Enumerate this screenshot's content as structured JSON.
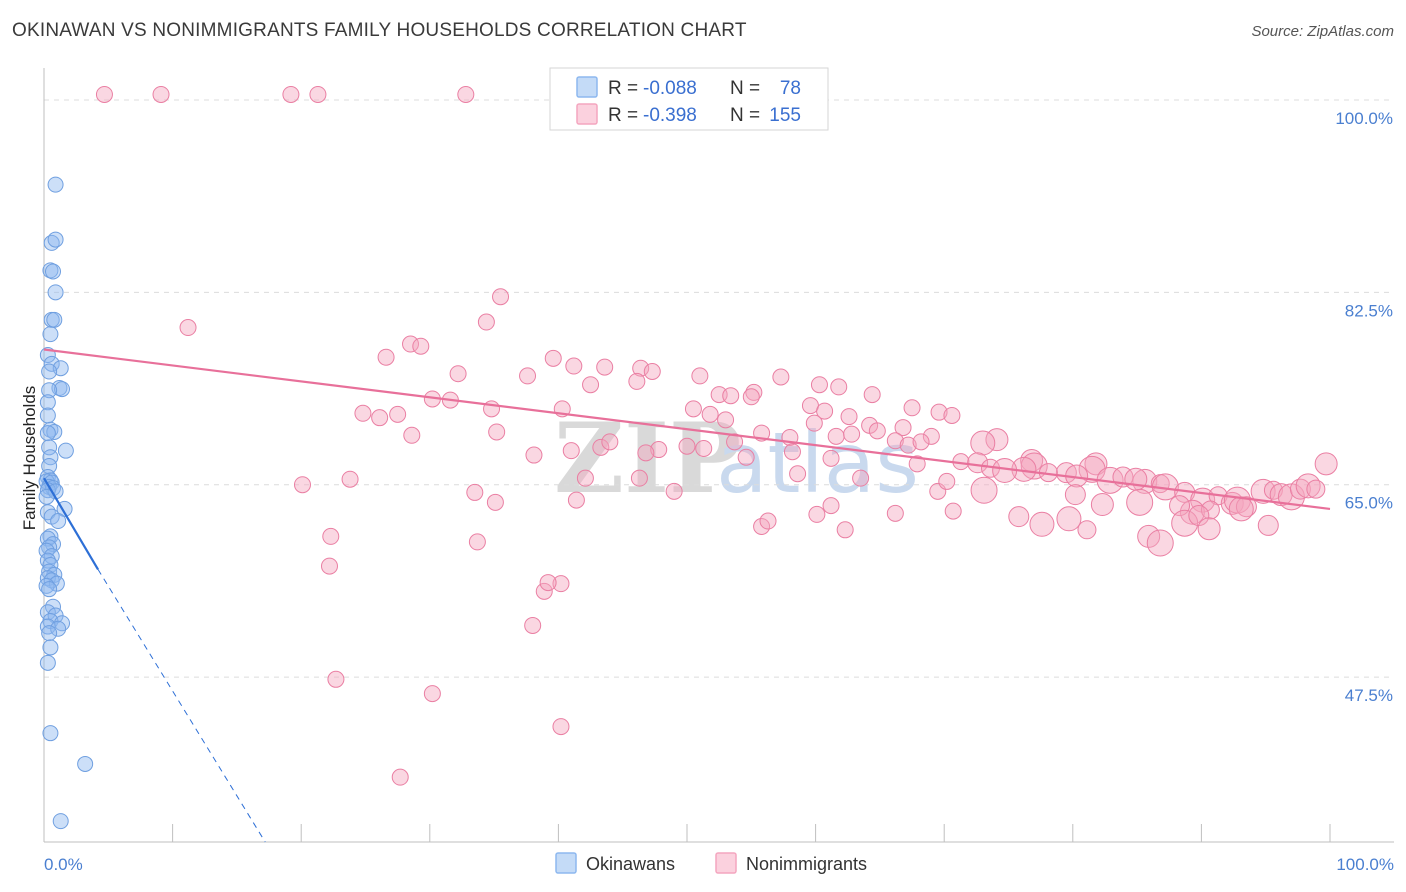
{
  "title": "OKINAWAN VS NONIMMIGRANTS FAMILY HOUSEHOLDS CORRELATION CHART",
  "source": "Source: ZipAtlas.com",
  "watermark": {
    "zip": "ZIP",
    "atlas": "atlas"
  },
  "legend": {
    "r_label": "R =",
    "n_label": "N =",
    "rows": [
      {
        "r": "-0.088",
        "n": "78",
        "color": "#8db8ef"
      },
      {
        "r": "-0.398",
        "n": "155",
        "color": "#f4a6bf"
      }
    ]
  },
  "bottom_legend": [
    {
      "label": "Okinawans",
      "color": "#8db8ef"
    },
    {
      "label": "Nonimmigrants",
      "color": "#f4a6bf"
    }
  ],
  "chart_data": {
    "type": "scatter",
    "title": "OKINAWAN VS NONIMMIGRANTS FAMILY HOUSEHOLDS CORRELATION CHART",
    "xlabel": "",
    "ylabel": "Family Households",
    "xlim": [
      0,
      100
    ],
    "ylim": [
      32.5,
      102
    ],
    "x_tick_labels": [
      "0.0%",
      "100.0%"
    ],
    "y_ticks": [
      {
        "value": 100.0,
        "label": "100.0%"
      },
      {
        "value": 82.5,
        "label": "82.5%"
      },
      {
        "value": 65.0,
        "label": "65.0%"
      },
      {
        "value": 47.5,
        "label": "47.5%"
      }
    ],
    "series": [
      {
        "name": "Okinawans",
        "color": "#8db8ef",
        "stroke": "#6f9fe0",
        "trend": {
          "x0": 0,
          "y0": 65.6,
          "x1": 4.2,
          "y1": 57.3,
          "dash_to_x": 17.2,
          "dash_to_y": 32.5,
          "color": "#2d6fd6"
        },
        "points": [
          [
            0.9,
            92.3
          ],
          [
            0.6,
            87.0
          ],
          [
            0.9,
            87.3
          ],
          [
            0.5,
            84.5
          ],
          [
            0.7,
            84.4
          ],
          [
            0.9,
            82.5
          ],
          [
            0.6,
            80.0
          ],
          [
            0.8,
            80.0
          ],
          [
            0.5,
            78.7
          ],
          [
            0.3,
            76.8
          ],
          [
            0.6,
            76.0
          ],
          [
            1.3,
            75.6
          ],
          [
            0.4,
            75.3
          ],
          [
            1.2,
            73.8
          ],
          [
            1.4,
            73.7
          ],
          [
            0.4,
            73.6
          ],
          [
            0.3,
            72.5
          ],
          [
            0.3,
            71.3
          ],
          [
            0.5,
            70.0
          ],
          [
            0.8,
            69.8
          ],
          [
            0.3,
            69.7
          ],
          [
            0.4,
            68.4
          ],
          [
            1.7,
            68.1
          ],
          [
            0.5,
            67.5
          ],
          [
            0.4,
            66.7
          ],
          [
            0.3,
            65.7
          ],
          [
            0.5,
            65.4
          ],
          [
            0.2,
            65.3
          ],
          [
            0.6,
            65.2
          ],
          [
            0.4,
            64.8
          ],
          [
            0.7,
            64.7
          ],
          [
            0.3,
            64.5
          ],
          [
            0.9,
            64.4
          ],
          [
            0.2,
            63.9
          ],
          [
            1.6,
            62.8
          ],
          [
            0.3,
            62.5
          ],
          [
            0.6,
            62.1
          ],
          [
            1.1,
            61.7
          ],
          [
            0.5,
            60.3
          ],
          [
            0.3,
            60.1
          ],
          [
            0.7,
            59.6
          ],
          [
            0.4,
            59.3
          ],
          [
            0.2,
            59.0
          ],
          [
            0.6,
            58.5
          ],
          [
            0.3,
            58.1
          ],
          [
            0.5,
            57.7
          ],
          [
            0.4,
            57.1
          ],
          [
            0.8,
            56.8
          ],
          [
            0.3,
            56.5
          ],
          [
            0.6,
            56.3
          ],
          [
            1.0,
            56.0
          ],
          [
            0.2,
            55.8
          ],
          [
            0.4,
            55.5
          ],
          [
            0.7,
            53.9
          ],
          [
            0.3,
            53.4
          ],
          [
            0.9,
            53.1
          ],
          [
            0.5,
            52.6
          ],
          [
            1.4,
            52.4
          ],
          [
            0.3,
            52.1
          ],
          [
            1.1,
            51.9
          ],
          [
            0.4,
            51.5
          ],
          [
            0.5,
            50.2
          ],
          [
            0.3,
            48.8
          ],
          [
            0.5,
            42.4
          ],
          [
            3.2,
            39.6
          ],
          [
            1.3,
            34.4
          ]
        ]
      },
      {
        "name": "Nonimmigrants",
        "color": "#f4a6bf",
        "stroke": "#ea7fa3",
        "trend": {
          "x0": 0,
          "y0": 77.3,
          "x1": 100,
          "y1": 62.8,
          "color": "#e8709a"
        },
        "points": [
          [
            4.7,
            100.5
          ],
          [
            9.1,
            100.5
          ],
          [
            19.2,
            100.5
          ],
          [
            21.3,
            100.5
          ],
          [
            32.8,
            100.5
          ],
          [
            11.2,
            79.3
          ],
          [
            35.5,
            82.1
          ],
          [
            34.4,
            79.8
          ],
          [
            28.5,
            77.8
          ],
          [
            29.3,
            77.6
          ],
          [
            26.6,
            76.6
          ],
          [
            39.6,
            76.5
          ],
          [
            41.2,
            75.8
          ],
          [
            43.6,
            75.7
          ],
          [
            32.2,
            75.1
          ],
          [
            46.4,
            75.6
          ],
          [
            47.3,
            75.3
          ],
          [
            42.5,
            74.1
          ],
          [
            37.6,
            74.9
          ],
          [
            51.0,
            74.9
          ],
          [
            46.1,
            74.4
          ],
          [
            57.3,
            74.8
          ],
          [
            60.3,
            74.1
          ],
          [
            52.5,
            73.2
          ],
          [
            55.2,
            73.4
          ],
          [
            64.4,
            73.2
          ],
          [
            61.8,
            73.9
          ],
          [
            53.4,
            73.1
          ],
          [
            55.0,
            73.0
          ],
          [
            59.6,
            72.2
          ],
          [
            40.3,
            71.9
          ],
          [
            26.1,
            71.1
          ],
          [
            30.2,
            72.8
          ],
          [
            31.6,
            72.7
          ],
          [
            34.8,
            71.9
          ],
          [
            27.5,
            71.4
          ],
          [
            24.8,
            71.5
          ],
          [
            67.5,
            72.0
          ],
          [
            69.6,
            71.6
          ],
          [
            50.5,
            71.9
          ],
          [
            60.7,
            71.7
          ],
          [
            70.6,
            71.3
          ],
          [
            62.6,
            71.2
          ],
          [
            51.8,
            71.4
          ],
          [
            53.0,
            70.9
          ],
          [
            59.9,
            70.6
          ],
          [
            66.8,
            70.2
          ],
          [
            64.2,
            70.4
          ],
          [
            64.8,
            69.9
          ],
          [
            55.8,
            69.7
          ],
          [
            69.0,
            69.4
          ],
          [
            61.6,
            69.4
          ],
          [
            62.8,
            69.6
          ],
          [
            58.0,
            69.3
          ],
          [
            28.6,
            69.5
          ],
          [
            35.2,
            69.8
          ],
          [
            74.1,
            69.1
          ],
          [
            66.2,
            69.0
          ],
          [
            67.2,
            68.6
          ],
          [
            73.0,
            68.8
          ],
          [
            68.2,
            68.9
          ],
          [
            58.2,
            68.0
          ],
          [
            50.0,
            68.5
          ],
          [
            47.8,
            68.2
          ],
          [
            51.3,
            68.3
          ],
          [
            41.0,
            68.1
          ],
          [
            43.3,
            68.4
          ],
          [
            38.1,
            67.7
          ],
          [
            54.6,
            67.5
          ],
          [
            61.2,
            67.4
          ],
          [
            71.3,
            67.1
          ],
          [
            76.8,
            67.2
          ],
          [
            77.0,
            66.7
          ],
          [
            72.6,
            67.0
          ],
          [
            76.2,
            66.4
          ],
          [
            73.6,
            66.5
          ],
          [
            81.8,
            66.9
          ],
          [
            81.5,
            66.4
          ],
          [
            79.5,
            66.1
          ],
          [
            74.7,
            66.3
          ],
          [
            78.1,
            66.1
          ],
          [
            80.3,
            65.8
          ],
          [
            82.9,
            65.4
          ],
          [
            83.9,
            65.7
          ],
          [
            85.6,
            65.3
          ],
          [
            86.8,
            65.1
          ],
          [
            84.9,
            65.5
          ],
          [
            87.2,
            64.8
          ],
          [
            88.7,
            64.3
          ],
          [
            90.1,
            63.6
          ],
          [
            91.3,
            64.0
          ],
          [
            92.4,
            63.3
          ],
          [
            92.8,
            63.6
          ],
          [
            93.5,
            63.0
          ],
          [
            94.8,
            64.4
          ],
          [
            95.6,
            64.5
          ],
          [
            96.2,
            64.1
          ],
          [
            97.0,
            63.9
          ],
          [
            97.7,
            64.6
          ],
          [
            98.3,
            64.9
          ],
          [
            98.9,
            64.6
          ],
          [
            99.7,
            66.9
          ],
          [
            73.1,
            64.5
          ],
          [
            80.2,
            64.1
          ],
          [
            89.3,
            62.5
          ],
          [
            90.7,
            62.7
          ],
          [
            82.3,
            63.2
          ],
          [
            85.2,
            63.4
          ],
          [
            88.3,
            63.1
          ],
          [
            93.1,
            62.8
          ],
          [
            20.1,
            65.0
          ],
          [
            46.3,
            65.6
          ],
          [
            33.5,
            64.3
          ],
          [
            49.0,
            64.4
          ],
          [
            61.2,
            63.1
          ],
          [
            69.5,
            64.4
          ],
          [
            66.2,
            62.4
          ],
          [
            70.7,
            62.6
          ],
          [
            75.8,
            62.1
          ],
          [
            79.7,
            61.9
          ],
          [
            55.8,
            61.2
          ],
          [
            56.3,
            61.7
          ],
          [
            88.7,
            61.5
          ],
          [
            95.2,
            61.3
          ],
          [
            77.6,
            61.4
          ],
          [
            81.1,
            60.9
          ],
          [
            85.9,
            60.3
          ],
          [
            86.8,
            59.7
          ],
          [
            89.8,
            62.2
          ],
          [
            60.1,
            62.3
          ],
          [
            62.3,
            60.9
          ],
          [
            90.6,
            61.0
          ],
          [
            42.1,
            65.6
          ],
          [
            23.8,
            65.5
          ],
          [
            41.4,
            63.6
          ],
          [
            35.1,
            63.4
          ],
          [
            33.7,
            59.8
          ],
          [
            22.2,
            57.6
          ],
          [
            40.2,
            56.0
          ],
          [
            38.9,
            55.3
          ],
          [
            39.2,
            56.1
          ],
          [
            38.0,
            52.2
          ],
          [
            22.7,
            47.3
          ],
          [
            30.2,
            46.0
          ],
          [
            40.2,
            43.0
          ],
          [
            27.7,
            38.4
          ],
          [
            22.3,
            60.3
          ],
          [
            58.6,
            66.0
          ],
          [
            63.5,
            65.6
          ],
          [
            67.9,
            66.9
          ],
          [
            70.2,
            65.3
          ],
          [
            46.8,
            67.9
          ],
          [
            44.0,
            68.9
          ],
          [
            53.7,
            68.9
          ]
        ]
      }
    ]
  }
}
